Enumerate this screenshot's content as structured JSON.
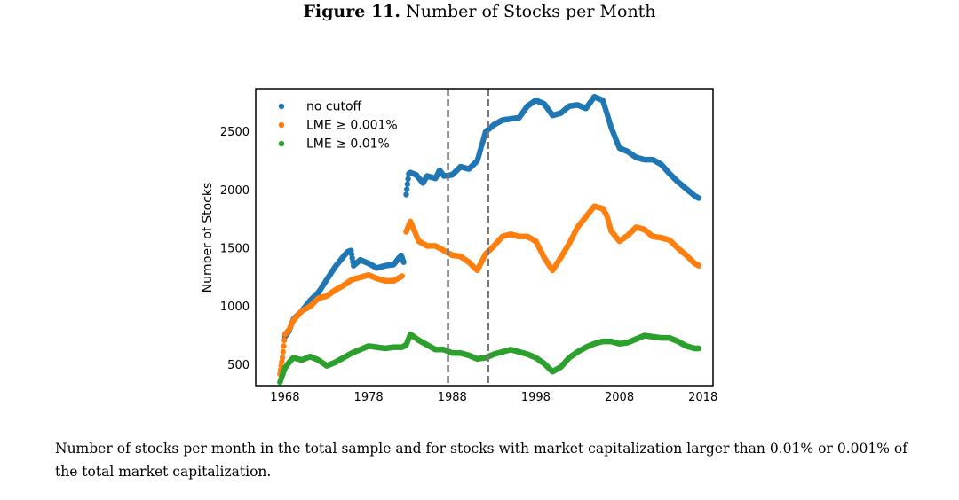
{
  "figure": {
    "label": "Figure 11.",
    "title": "Number of Stocks per Month"
  },
  "caption": "Number of stocks per month in the total sample and for stocks with market capitalization larger than 0.01% or 0.001% of the total market capitalization.",
  "chart_data": {
    "type": "scatter",
    "title": "Number of Stocks per Month",
    "xlabel": "",
    "ylabel": "Number of Stocks",
    "xlim": [
      1964.5,
      2019.2
    ],
    "ylim": [
      320,
      2870
    ],
    "xticks": [
      1968,
      1978,
      1988,
      1998,
      2008,
      2018
    ],
    "yticks": [
      500,
      1000,
      1500,
      2000,
      2500
    ],
    "grid": false,
    "legend_position": "top-left",
    "vlines": [
      1987.5,
      1992.3
    ],
    "series": [
      {
        "name": "no cutoff",
        "color": "#1f77b4",
        "x": [
          1968.0,
          1968.5,
          1969.0,
          1970.0,
          1971.0,
          1972.0,
          1973.0,
          1974.0,
          1975.0,
          1975.5,
          1975.9,
          1976.2,
          1977.0,
          1978.0,
          1979.0,
          1980.0,
          1981.0,
          1981.9,
          1982.2,
          1982.5,
          1982.8,
          1983.0,
          1983.7,
          1984.5,
          1985.0,
          1986.0,
          1986.5,
          1987.0,
          1988.0,
          1989.0,
          1990.0,
          1991.0,
          1992.0,
          1993.0,
          1994.0,
          1995.0,
          1996.0,
          1997.0,
          1998.0,
          1999.0,
          2000.0,
          2001.0,
          2002.0,
          2003.0,
          2004.0,
          2005.0,
          2006.0,
          2006.5,
          2007.0,
          2008.0,
          2009.0,
          2010.0,
          2011.0,
          2012.0,
          2013.0,
          2014.0,
          2015.0,
          2016.0,
          2017.0,
          2017.5
        ],
        "y": [
          740,
          790,
          890,
          960,
          1050,
          1120,
          1230,
          1340,
          1430,
          1470,
          1480,
          1350,
          1400,
          1370,
          1330,
          1350,
          1360,
          1440,
          1380,
          1960,
          2140,
          2150,
          2130,
          2060,
          2120,
          2100,
          2170,
          2120,
          2130,
          2200,
          2180,
          2250,
          2500,
          2560,
          2600,
          2610,
          2620,
          2720,
          2770,
          2740,
          2640,
          2660,
          2720,
          2730,
          2700,
          2800,
          2770,
          2660,
          2540,
          2360,
          2330,
          2280,
          2260,
          2260,
          2220,
          2140,
          2070,
          2010,
          1950,
          1930
        ]
      },
      {
        "name": "LME ≥ 0.001%",
        "color": "#ff7f0e",
        "x": [
          1967.4,
          1967.7,
          1968.0,
          1968.5,
          1969.0,
          1970.0,
          1971.0,
          1972.0,
          1973.0,
          1974.0,
          1975.0,
          1976.0,
          1977.0,
          1978.0,
          1979.0,
          1980.0,
          1981.0,
          1982.0,
          1982.5,
          1983.0,
          1984.0,
          1985.0,
          1986.0,
          1987.0,
          1988.0,
          1989.0,
          1990.0,
          1991.0,
          1992.0,
          1993.0,
          1994.0,
          1995.0,
          1996.0,
          1997.0,
          1998.0,
          1999.0,
          2000.0,
          2001.0,
          2002.0,
          2003.0,
          2004.0,
          2005.0,
          2006.0,
          2006.5,
          2007.0,
          2008.0,
          2009.0,
          2010.0,
          2011.0,
          2012.0,
          2013.0,
          2014.0,
          2015.0,
          2016.0,
          2017.0,
          2017.5
        ],
        "y": [
          420,
          560,
          760,
          800,
          880,
          960,
          1000,
          1070,
          1090,
          1140,
          1180,
          1230,
          1250,
          1270,
          1240,
          1220,
          1220,
          1260,
          1640,
          1730,
          1560,
          1520,
          1520,
          1480,
          1440,
          1430,
          1380,
          1310,
          1450,
          1520,
          1600,
          1620,
          1600,
          1600,
          1560,
          1420,
          1310,
          1420,
          1540,
          1680,
          1770,
          1860,
          1840,
          1780,
          1650,
          1560,
          1610,
          1680,
          1660,
          1600,
          1590,
          1570,
          1500,
          1440,
          1370,
          1350
        ]
      },
      {
        "name": "LME ≥ 0.01%",
        "color": "#2ca02c",
        "x": [
          1967.4,
          1968.0,
          1968.5,
          1969.0,
          1970.0,
          1971.0,
          1972.0,
          1973.0,
          1974.0,
          1975.0,
          1976.0,
          1977.0,
          1978.0,
          1979.0,
          1980.0,
          1981.0,
          1982.0,
          1982.5,
          1983.0,
          1984.0,
          1985.0,
          1986.0,
          1987.0,
          1988.0,
          1989.0,
          1990.0,
          1991.0,
          1992.0,
          1993.0,
          1994.0,
          1995.0,
          1996.0,
          1997.0,
          1998.0,
          1999.0,
          2000.0,
          2001.0,
          2002.0,
          2003.0,
          2004.0,
          2005.0,
          2006.0,
          2007.0,
          2008.0,
          2009.0,
          2010.0,
          2011.0,
          2012.0,
          2013.0,
          2014.0,
          2015.0,
          2016.0,
          2017.0,
          2017.5
        ],
        "y": [
          350,
          470,
          520,
          560,
          540,
          570,
          540,
          490,
          520,
          560,
          600,
          630,
          660,
          650,
          640,
          650,
          650,
          670,
          760,
          710,
          670,
          630,
          630,
          600,
          600,
          580,
          550,
          560,
          590,
          610,
          630,
          610,
          590,
          560,
          510,
          440,
          480,
          560,
          610,
          650,
          680,
          700,
          700,
          680,
          690,
          720,
          750,
          740,
          730,
          730,
          700,
          660,
          640,
          640
        ]
      }
    ]
  }
}
